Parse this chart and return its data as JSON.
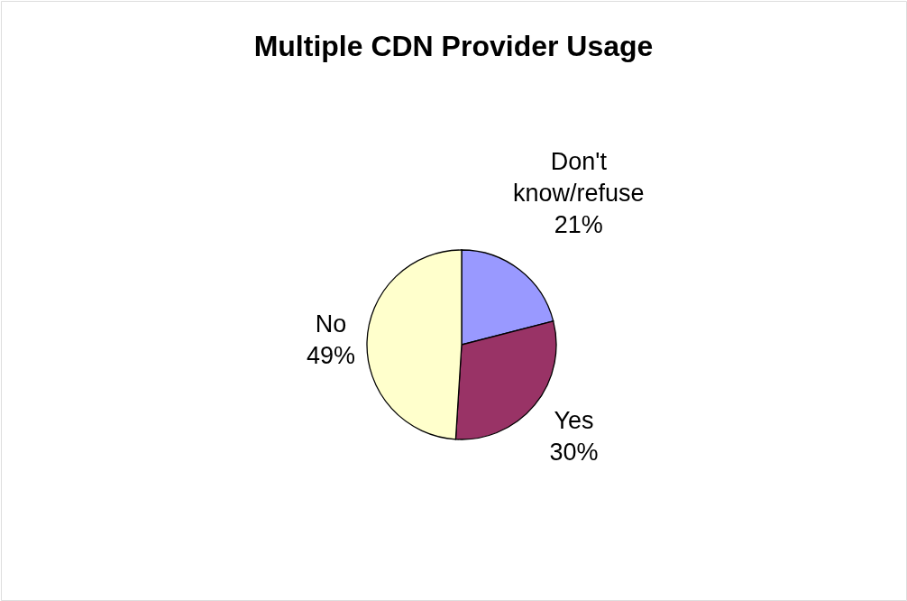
{
  "chart_data": {
    "type": "pie",
    "title": "Multiple CDN Provider Usage",
    "categories": [
      "Don't know/refuse",
      "Yes",
      "No"
    ],
    "values": [
      21,
      30,
      49
    ],
    "value_labels": [
      "21%",
      "30%",
      "49%"
    ],
    "colors": [
      "#9999ff",
      "#993366",
      "#ffffcc"
    ]
  }
}
